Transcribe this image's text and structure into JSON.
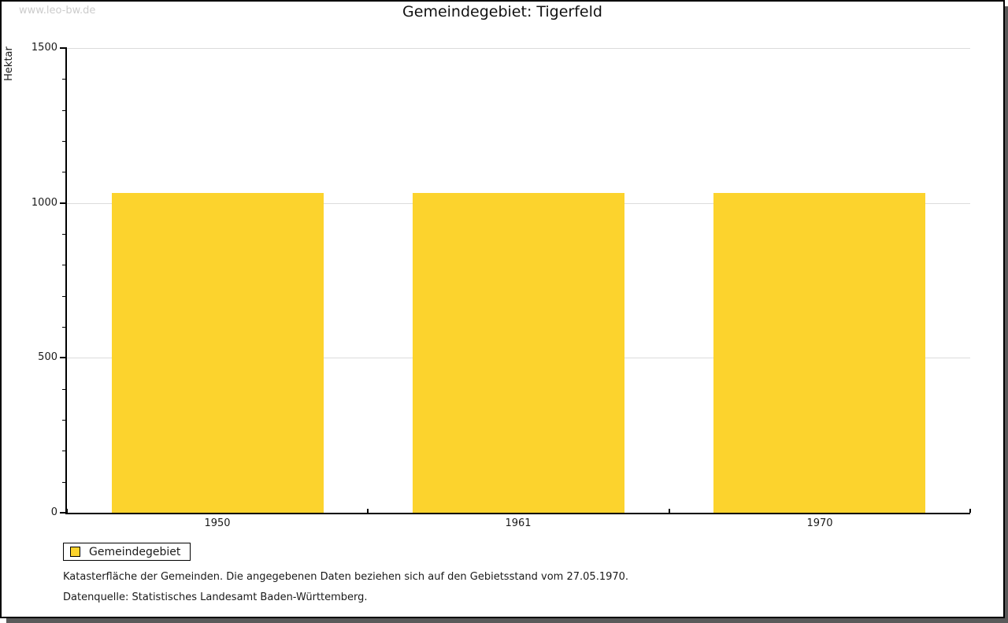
{
  "watermark": "www.leo-bw.de",
  "title": "Gemeindegebiet: Tigerfeld",
  "legend": {
    "label": "Gemeindegebiet"
  },
  "footnotes": {
    "line1": "Katasterfläche der Gemeinden. Die angegebenen Daten beziehen sich auf den Gebietsstand vom 27.05.1970.",
    "line2": "Datenquelle: Statistisches Landesamt Baden-Württemberg."
  },
  "colors": {
    "bar": "#fcd32d",
    "gridline": "#dcdcdc",
    "axis": "#000000",
    "watermark": "#cccccc",
    "window_shadow": "#5a5a5a"
  },
  "chart_data": {
    "type": "bar",
    "title": "Gemeindegebiet: Tigerfeld",
    "categories": [
      "1950",
      "1961",
      "1970"
    ],
    "series": [
      {
        "name": "Gemeindegebiet",
        "values": [
          1033,
          1033,
          1033
        ],
        "color": "#fcd32d"
      }
    ],
    "xlabel": "",
    "ylabel": "Hektar",
    "ylim": [
      0,
      1500
    ],
    "yticks": [
      0,
      500,
      1000,
      1500
    ],
    "minor_tick_step": 100,
    "grid": "horizontal-major",
    "legend_position": "bottom-left"
  }
}
